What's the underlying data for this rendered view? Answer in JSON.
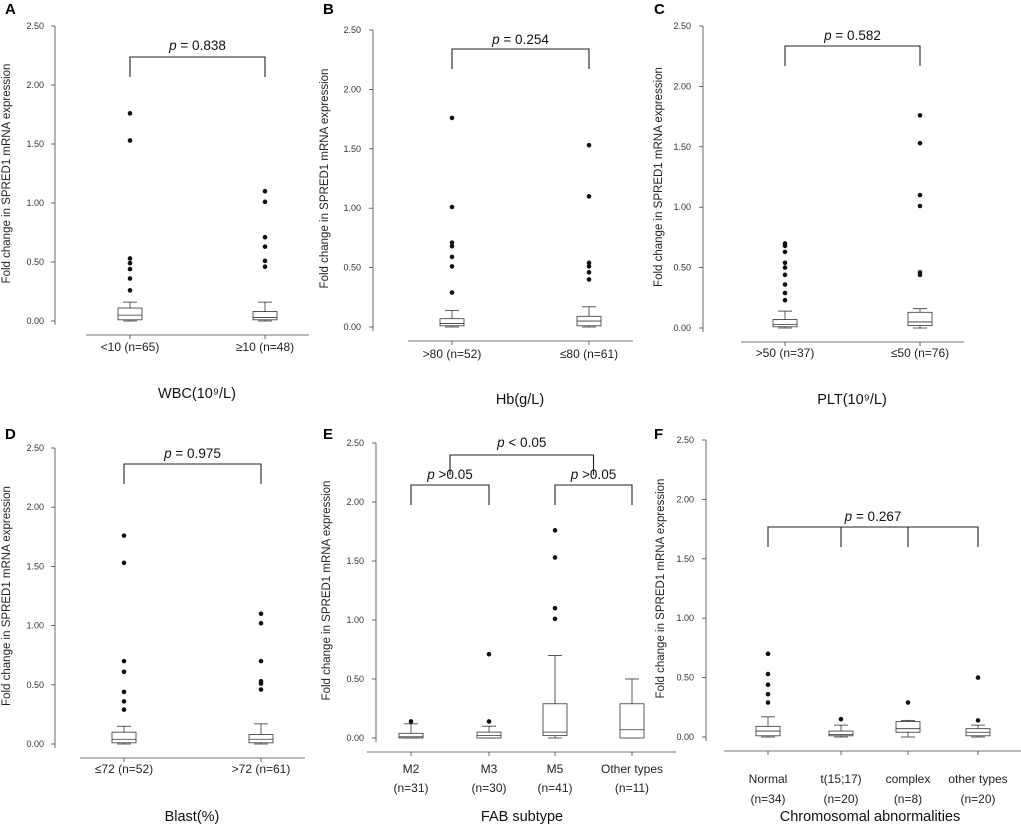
{
  "chart_data": [
    {
      "panel": "A",
      "type": "box",
      "xlabel": "WBC(10⁹/L)",
      "ylabel": "Fold change in SPRED1 mRNA expression",
      "ylim": [
        0,
        2.5
      ],
      "yticks": [
        "0.00",
        "0.50",
        "1.00",
        "1.50",
        "2.00",
        "2.50"
      ],
      "categories": [
        [
          "<10 (n=65)"
        ],
        [
          "≥10 (n=48)"
        ]
      ],
      "boxes": [
        {
          "min": 0.0,
          "q1": 0.01,
          "median": 0.05,
          "q3": 0.11,
          "max": 0.16,
          "outliers": [
            0.26,
            0.36,
            0.44,
            0.49,
            0.53,
            1.53,
            1.76
          ]
        },
        {
          "min": 0.0,
          "q1": 0.01,
          "median": 0.03,
          "q3": 0.08,
          "max": 0.16,
          "outliers": [
            0.46,
            0.51,
            0.63,
            0.71,
            1.01,
            1.1
          ]
        }
      ],
      "comparisons": [
        {
          "label": "p = 0.838",
          "groups": [
            1,
            2
          ]
        }
      ]
    },
    {
      "panel": "B",
      "type": "box",
      "xlabel": "Hb(g/L)",
      "ylabel": "Fold change in SPRED1 mRNA expression",
      "ylim": [
        0,
        2.5
      ],
      "yticks": [
        "0.00",
        "0.50",
        "1.00",
        "1.50",
        "2.00",
        "2.50"
      ],
      "categories": [
        [
          ">80 (n=52)"
        ],
        [
          "≤80 (n=61)"
        ]
      ],
      "boxes": [
        {
          "min": 0.0,
          "q1": 0.01,
          "median": 0.03,
          "q3": 0.07,
          "max": 0.14,
          "outliers": [
            0.29,
            0.51,
            0.59,
            0.68,
            0.71,
            1.01,
            1.76
          ]
        },
        {
          "min": 0.0,
          "q1": 0.01,
          "median": 0.05,
          "q3": 0.09,
          "max": 0.17,
          "outliers": [
            0.4,
            0.46,
            0.51,
            0.54,
            1.1,
            1.53
          ]
        }
      ],
      "comparisons": [
        {
          "label": "p = 0.254",
          "groups": [
            1,
            2
          ]
        }
      ]
    },
    {
      "panel": "C",
      "type": "box",
      "xlabel": "PLT(10⁹/L)",
      "ylabel": "Fold change in SPRED1 mRNA expression",
      "ylim": [
        0,
        2.5
      ],
      "yticks": [
        "0.00",
        "0.50",
        "1.00",
        "1.50",
        "2.00",
        "2.50"
      ],
      "categories": [
        [
          ">50 (n=37)"
        ],
        [
          "≤50 (n=76)"
        ]
      ],
      "boxes": [
        {
          "min": 0.0,
          "q1": 0.01,
          "median": 0.03,
          "q3": 0.07,
          "max": 0.14,
          "outliers": [
            0.23,
            0.29,
            0.36,
            0.44,
            0.5,
            0.54,
            0.63,
            0.68,
            0.7
          ]
        },
        {
          "min": 0.0,
          "q1": 0.02,
          "median": 0.05,
          "q3": 0.13,
          "max": 0.16,
          "outliers": [
            0.44,
            0.46,
            1.01,
            1.1,
            1.53,
            1.76
          ]
        }
      ],
      "comparisons": [
        {
          "label": "p = 0.582",
          "groups": [
            1,
            2
          ]
        }
      ]
    },
    {
      "panel": "D",
      "type": "box",
      "xlabel": "Blast(%)",
      "ylabel": "Fold change in SPRED1 mRNA expression",
      "ylim": [
        0,
        2.5
      ],
      "yticks": [
        "0.00",
        "0.50",
        "1.00",
        "1.50",
        "2.00",
        "2.50"
      ],
      "categories": [
        [
          "≤72 (n=52)"
        ],
        [
          ">72 (n=61)"
        ]
      ],
      "boxes": [
        {
          "min": 0.0,
          "q1": 0.01,
          "median": 0.04,
          "q3": 0.1,
          "max": 0.15,
          "outliers": [
            0.29,
            0.36,
            0.44,
            0.61,
            0.7,
            1.53,
            1.76
          ]
        },
        {
          "min": 0.0,
          "q1": 0.01,
          "median": 0.04,
          "q3": 0.08,
          "max": 0.17,
          "outliers": [
            0.46,
            0.51,
            0.53,
            0.7,
            1.02,
            1.1
          ]
        }
      ],
      "comparisons": [
        {
          "label": "p = 0.975",
          "groups": [
            1,
            2
          ]
        }
      ]
    },
    {
      "panel": "E",
      "type": "box",
      "xlabel": "FAB subtype",
      "ylabel": "Fold change in SPRED1 mRNA expression",
      "ylim": [
        0,
        2.5
      ],
      "yticks": [
        "0.00",
        "0.50",
        "1.00",
        "1.50",
        "2.00",
        "2.50"
      ],
      "categories": [
        [
          "M2",
          "(n=31)"
        ],
        [
          "M3",
          "(n=30)"
        ],
        [
          "M5",
          "(n=41)"
        ],
        [
          "Other types",
          "(n=11)"
        ]
      ],
      "boxes": [
        {
          "min": 0.0,
          "q1": 0.0,
          "median": 0.01,
          "q3": 0.04,
          "max": 0.12,
          "outliers": [
            0.14
          ]
        },
        {
          "min": 0.0,
          "q1": 0.0,
          "median": 0.02,
          "q3": 0.05,
          "max": 0.1,
          "outliers": [
            0.14,
            0.71
          ]
        },
        {
          "min": 0.0,
          "q1": 0.02,
          "median": 0.05,
          "q3": 0.29,
          "max": 0.7,
          "outliers": [
            1.01,
            1.1,
            1.53,
            1.76
          ]
        },
        {
          "min": 0.0,
          "q1": 0.0,
          "median": 0.07,
          "q3": 0.29,
          "max": 0.5,
          "outliers": []
        }
      ],
      "comparisons": [
        {
          "label": "p >0.05",
          "groups": [
            1,
            2
          ]
        },
        {
          "label": "p >0.05",
          "groups": [
            3,
            4
          ]
        },
        {
          "label": "p < 0.05",
          "groups": [
            1.5,
            3.5
          ]
        }
      ]
    },
    {
      "panel": "F",
      "type": "box",
      "xlabel": "Chromosomal abnormalities",
      "ylabel": "Fold change in SPRED1 mRNA expression",
      "ylim": [
        0,
        2.5
      ],
      "yticks": [
        "0.00",
        "0.50",
        "1.00",
        "1.50",
        "2.00",
        "2.50"
      ],
      "categories": [
        [
          "Normal",
          "(n=34)"
        ],
        [
          "t(15;17)",
          "(n=20)"
        ],
        [
          "complex",
          "(n=8)"
        ],
        [
          "other types",
          "(n=20)"
        ]
      ],
      "boxes": [
        {
          "min": 0.0,
          "q1": 0.01,
          "median": 0.05,
          "q3": 0.09,
          "max": 0.17,
          "outliers": [
            0.29,
            0.36,
            0.44,
            0.53,
            0.7
          ]
        },
        {
          "min": 0.0,
          "q1": 0.01,
          "median": 0.02,
          "q3": 0.05,
          "max": 0.1,
          "outliers": [
            0.15
          ]
        },
        {
          "min": 0.0,
          "q1": 0.04,
          "median": 0.07,
          "q3": 0.13,
          "max": 0.14,
          "outliers": [
            0.29
          ]
        },
        {
          "min": 0.0,
          "q1": 0.01,
          "median": 0.04,
          "q3": 0.07,
          "max": 0.1,
          "outliers": [
            0.14,
            0.5
          ]
        }
      ],
      "comparisons": [
        {
          "label": "p = 0.267",
          "groups": [
            1,
            4
          ],
          "drops": [
            2,
            3
          ]
        }
      ]
    }
  ]
}
